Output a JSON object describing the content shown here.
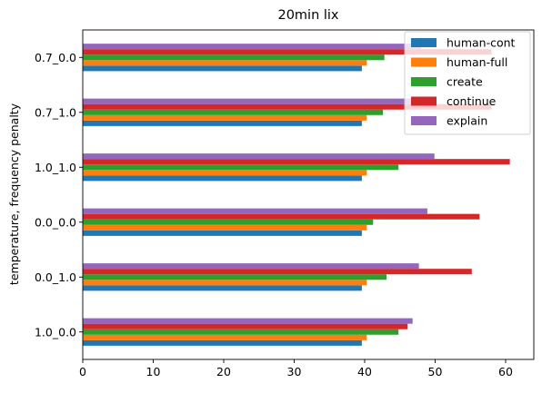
{
  "chart_data": {
    "type": "bar",
    "orientation": "horizontal",
    "title": "20min lix",
    "xlabel": "",
    "ylabel": "temperature, frequency penalty",
    "categories": [
      "1.0_0.0",
      "0.0_1.0",
      "0.0_0.0",
      "1.0_1.0",
      "0.7_1.0",
      "0.7_0.0"
    ],
    "xlim": [
      0,
      64
    ],
    "xticks": [
      0,
      10,
      20,
      30,
      40,
      50,
      60
    ],
    "grid": false,
    "legend_placement": "top-right",
    "series": [
      {
        "name": "human-cont",
        "color": "#1f77b4",
        "values": [
          39.6,
          39.6,
          39.6,
          39.6,
          39.6,
          39.6
        ]
      },
      {
        "name": "human-full",
        "color": "#ff7f0e",
        "values": [
          40.3,
          40.3,
          40.3,
          40.3,
          40.3,
          40.3
        ]
      },
      {
        "name": "create",
        "color": "#2ca02c",
        "values": [
          44.8,
          43.1,
          41.2,
          44.8,
          42.6,
          42.8
        ]
      },
      {
        "name": "continue",
        "color": "#d62728",
        "values": [
          46.1,
          55.2,
          56.3,
          60.6,
          58.0,
          58.0
        ]
      },
      {
        "name": "explain",
        "color": "#9467bd",
        "values": [
          46.8,
          47.7,
          48.9,
          49.9,
          48.0,
          48.0
        ]
      }
    ]
  }
}
